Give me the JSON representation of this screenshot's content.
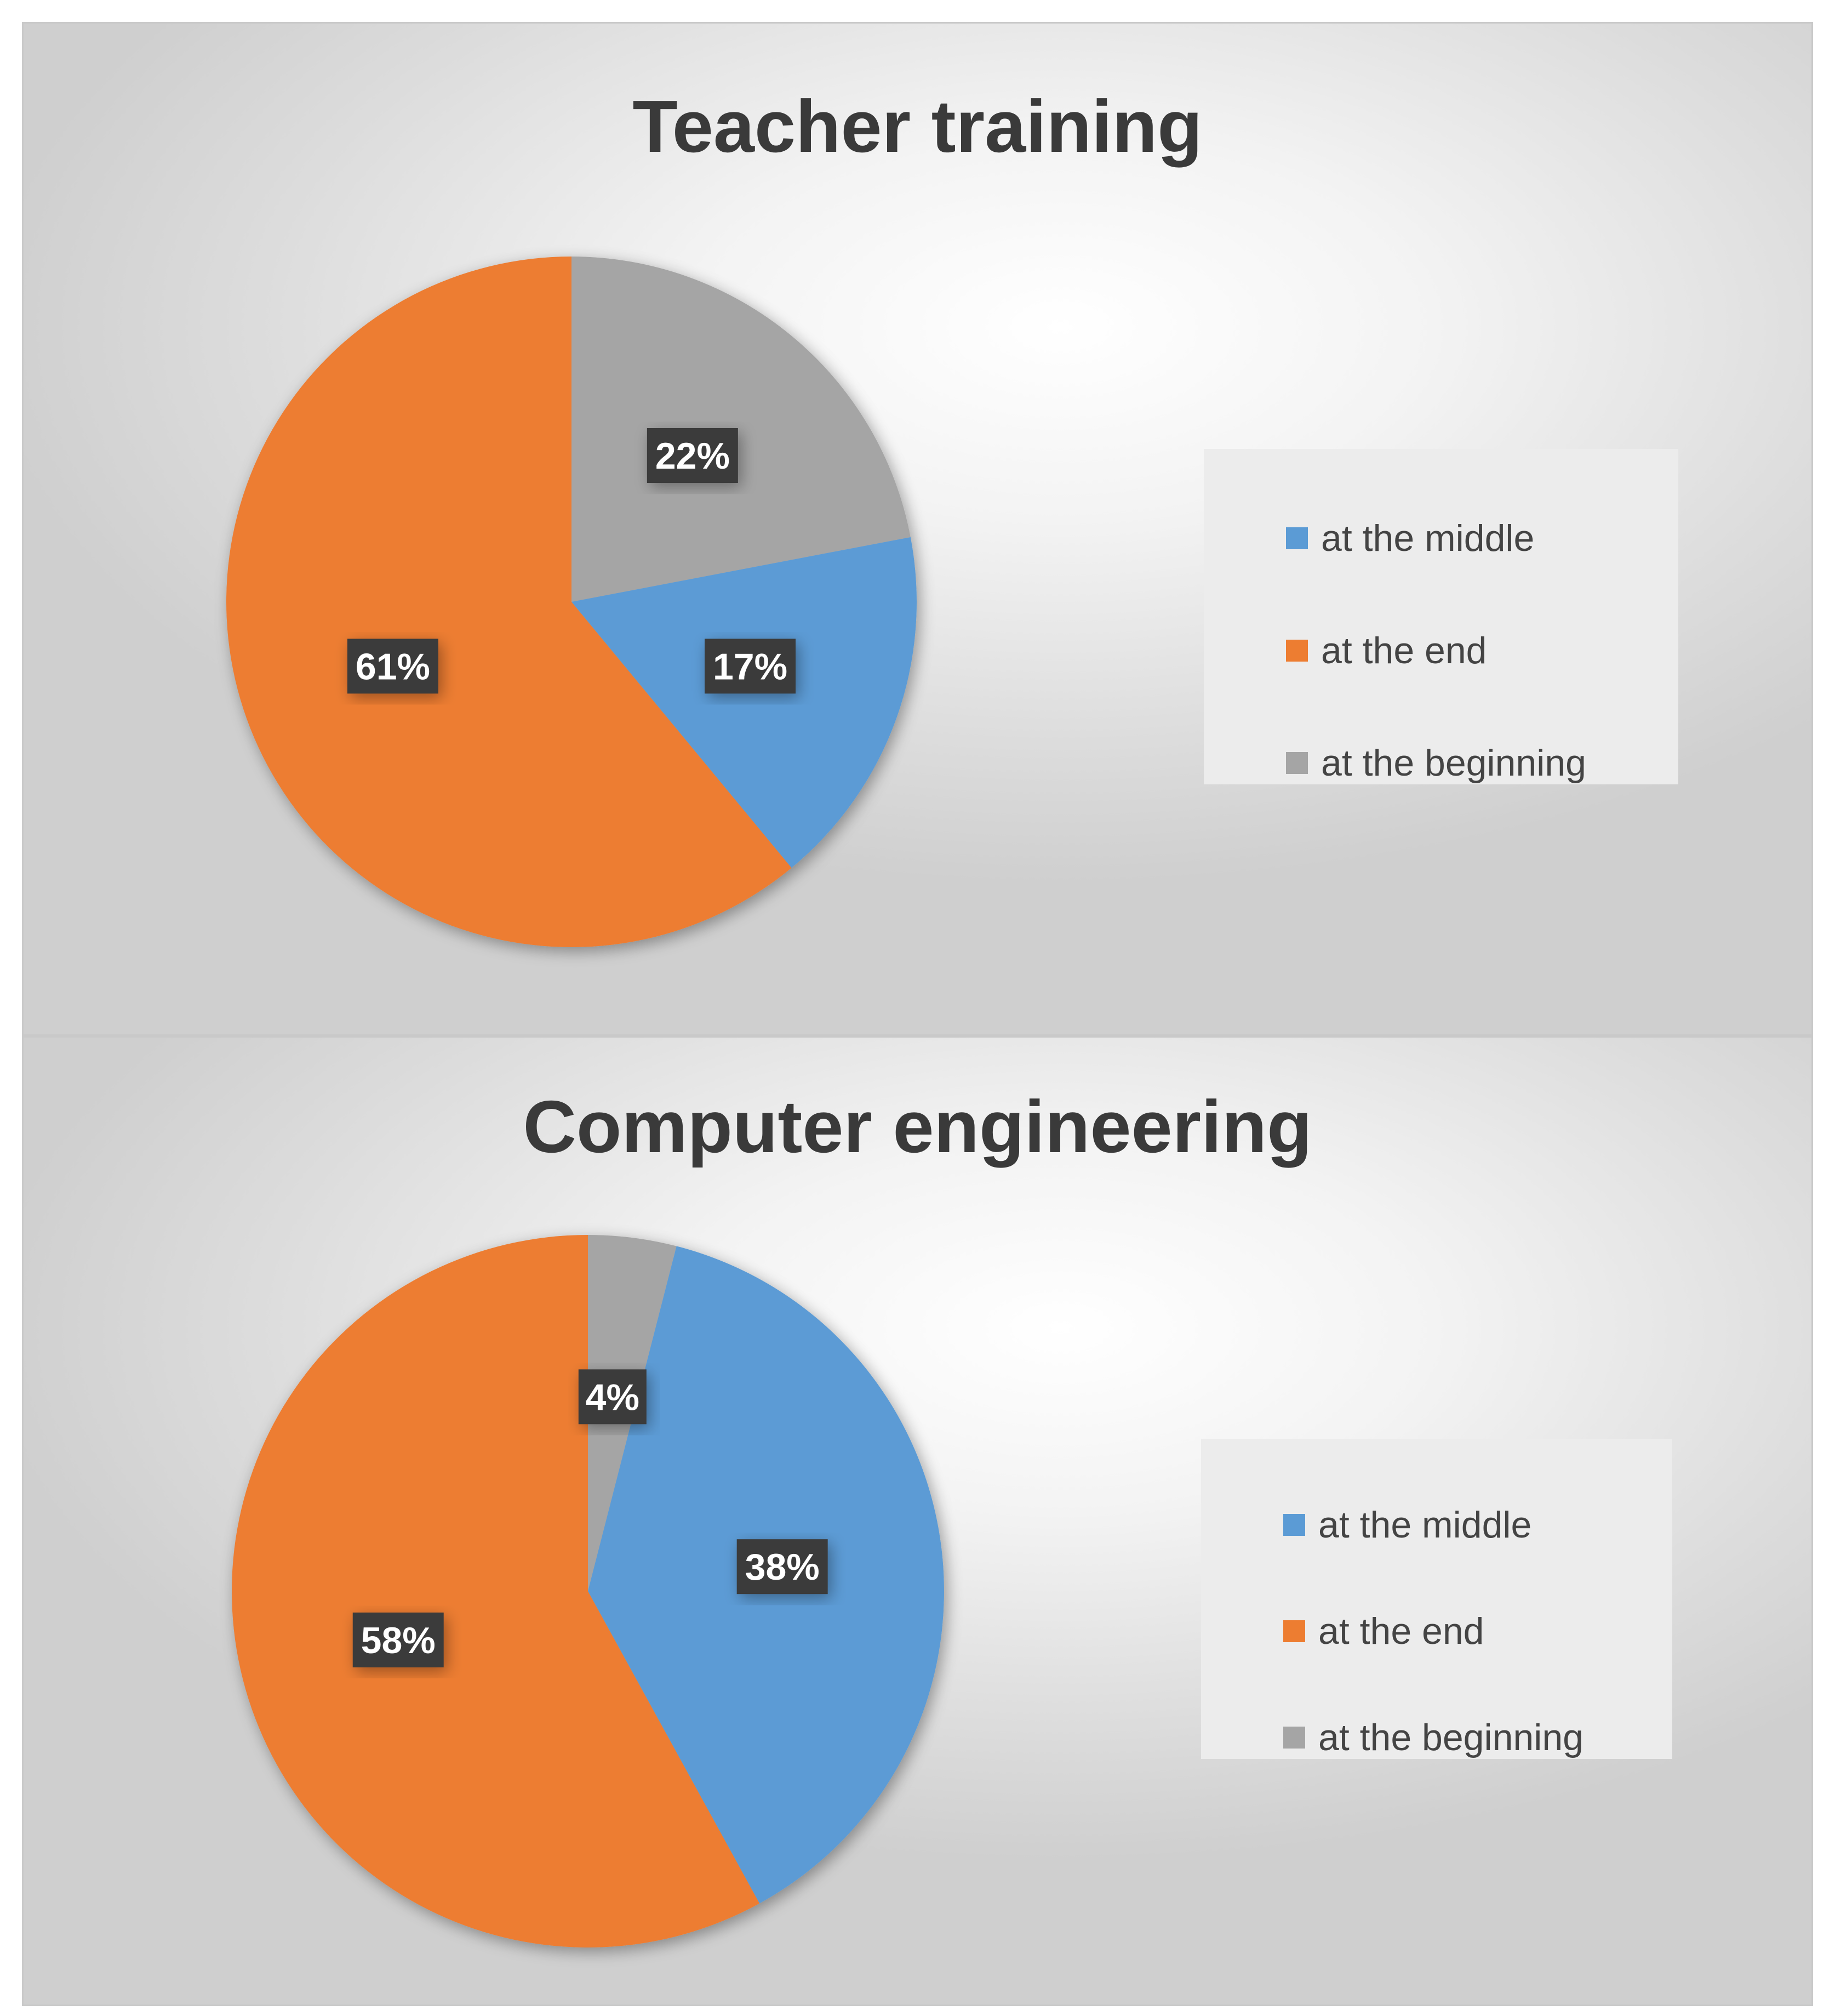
{
  "colors": {
    "at the middle": "#5b9bd5",
    "at the end": "#ed7d31",
    "at the beginning": "#a5a5a5",
    "label_bg": "#3a3a3a",
    "label_text": "#ffffff"
  },
  "chart_data": [
    {
      "type": "pie",
      "title": "Teacher training",
      "categories": [
        "at the middle",
        "at the end",
        "at the beginning"
      ],
      "values": [
        17,
        61,
        22
      ],
      "labels": [
        "17%",
        "61%",
        "22%"
      ],
      "legend": [
        "at the middle",
        "at the end",
        "at the beginning"
      ],
      "legend_position": "right"
    },
    {
      "type": "pie",
      "title": "Computer engineering",
      "categories": [
        "at the middle",
        "at the end",
        "at the beginning"
      ],
      "values": [
        38,
        58,
        4
      ],
      "labels": [
        "38%",
        "58%",
        "4%"
      ],
      "legend": [
        "at the middle",
        "at the end",
        "at the beginning"
      ],
      "legend_position": "right"
    }
  ]
}
